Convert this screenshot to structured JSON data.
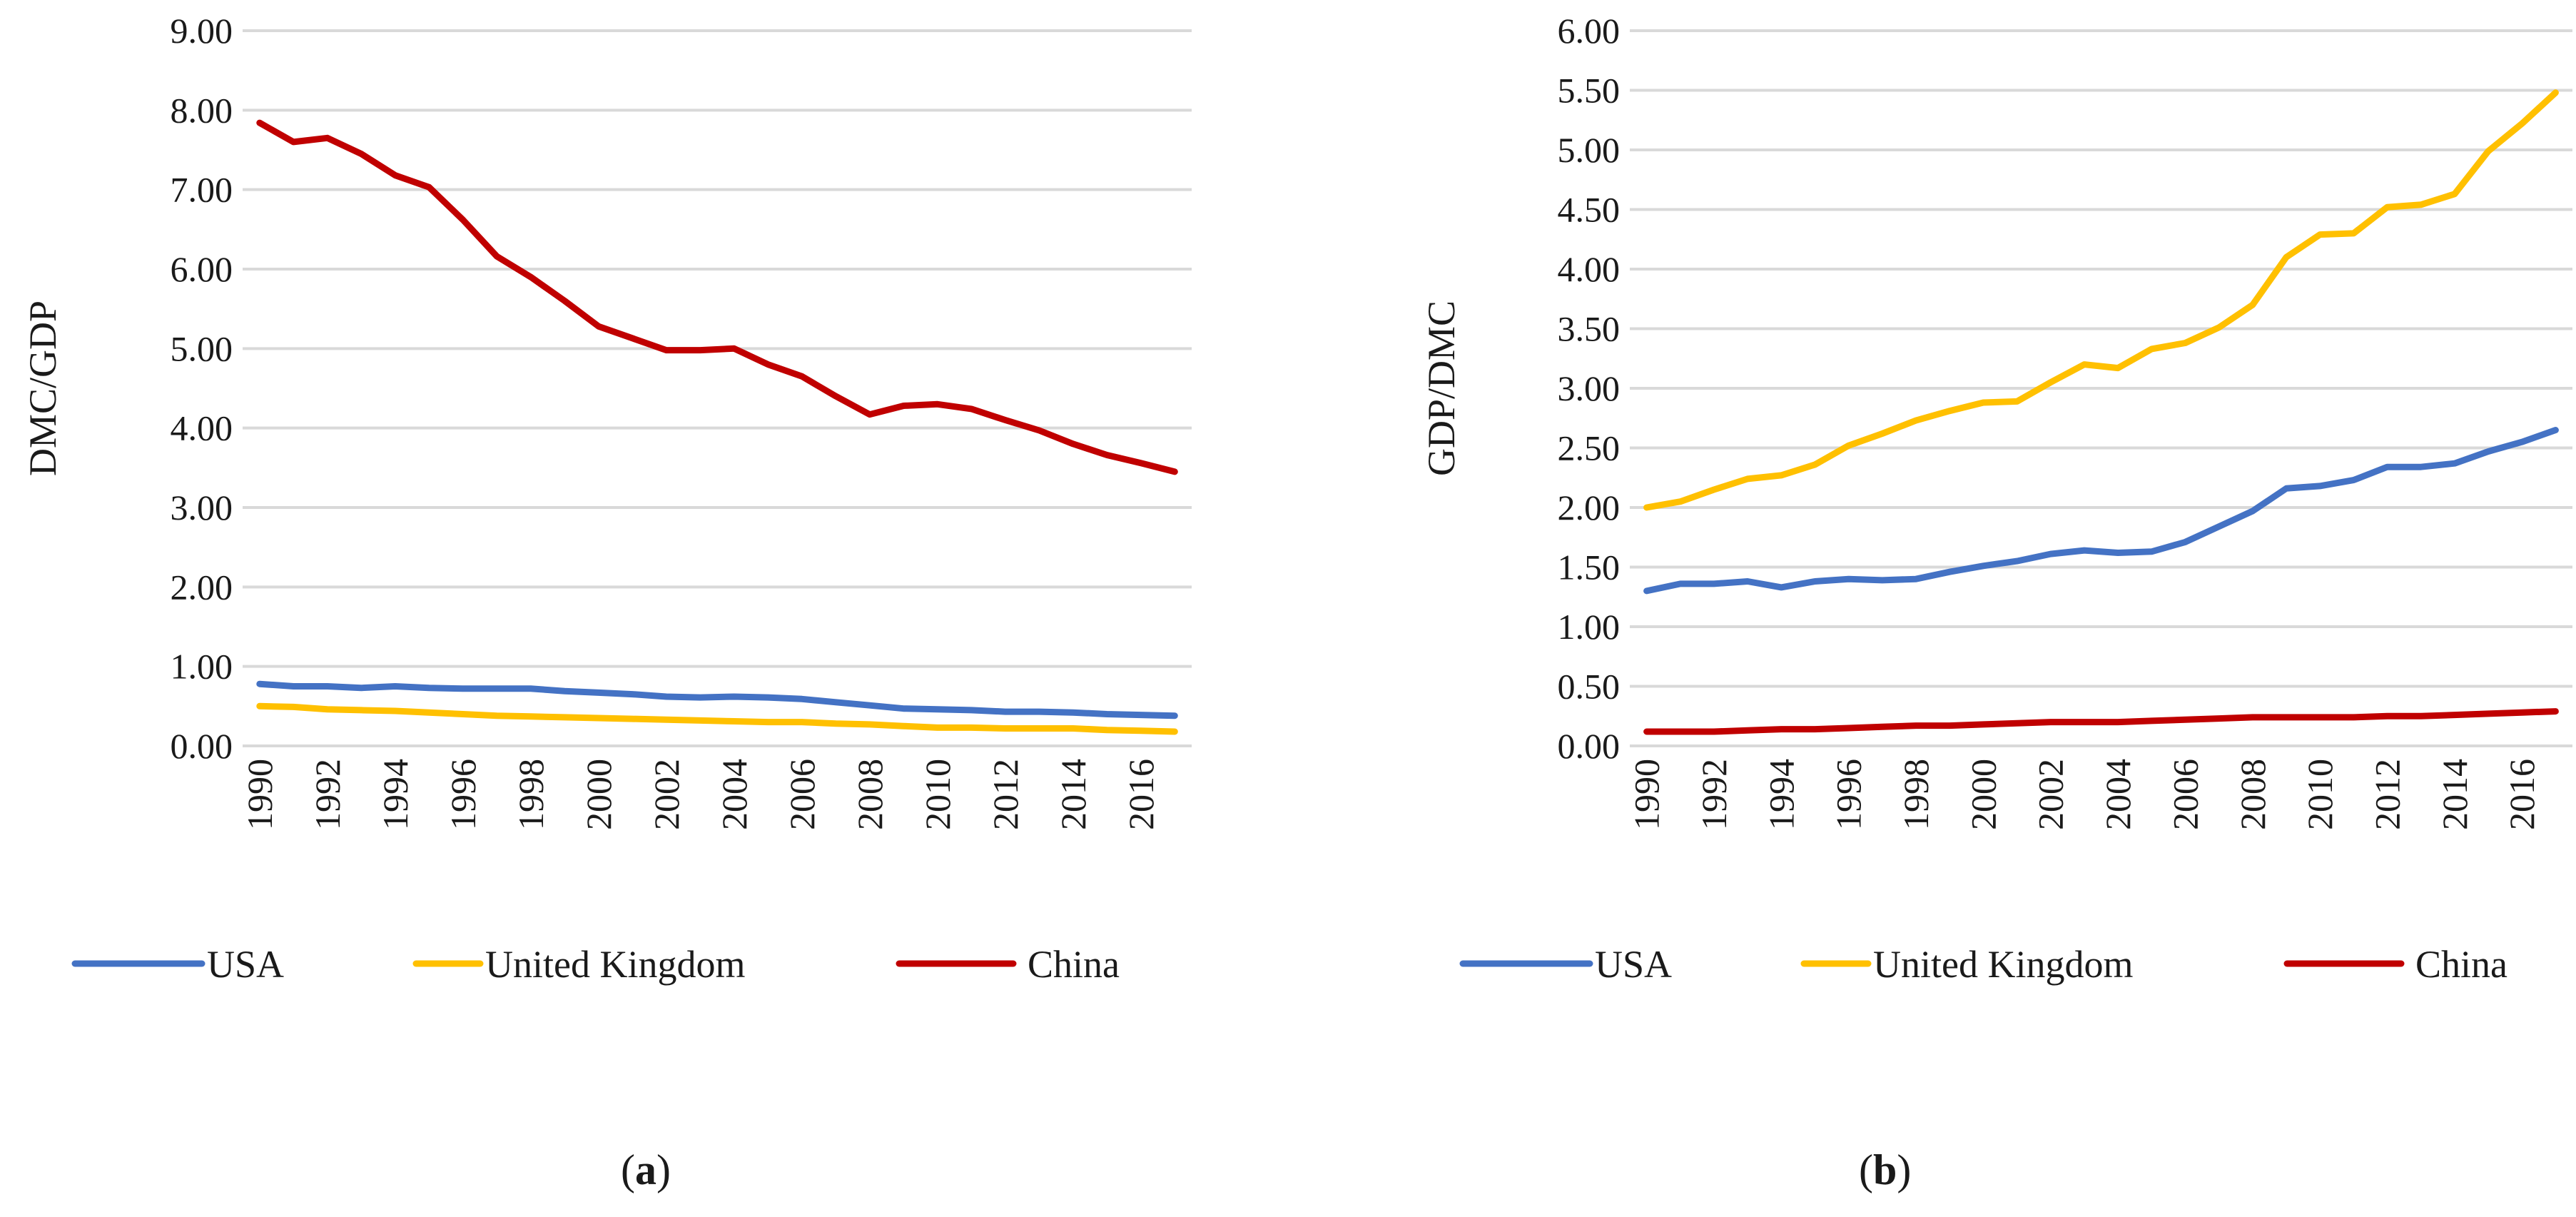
{
  "colors": {
    "usa": "#4472c4",
    "uk": "#ffc000",
    "china": "#c00000",
    "grid": "#d9d9d9"
  },
  "chart_data": [
    {
      "id": "a",
      "type": "line",
      "panel_label": "a",
      "title": "",
      "xlabel": "",
      "ylabel": "DMC/GDP",
      "ylim": [
        0,
        9
      ],
      "yticks": [
        "0.00",
        "1.00",
        "2.00",
        "3.00",
        "4.00",
        "5.00",
        "6.00",
        "7.00",
        "8.00",
        "9.00"
      ],
      "x": [
        1990,
        1991,
        1992,
        1993,
        1994,
        1995,
        1996,
        1997,
        1998,
        1999,
        2000,
        2001,
        2002,
        2003,
        2004,
        2005,
        2006,
        2007,
        2008,
        2009,
        2010,
        2011,
        2012,
        2013,
        2014,
        2015,
        2016,
        2017
      ],
      "xtick_labels": [
        "1990",
        "1992",
        "1994",
        "1996",
        "1998",
        "2000",
        "2002",
        "2004",
        "2006",
        "2008",
        "2010",
        "2012",
        "2014",
        "2016"
      ],
      "grid": true,
      "legend": "bottom",
      "series": [
        {
          "name": "USA",
          "color_key": "usa",
          "values": [
            0.78,
            0.75,
            0.75,
            0.73,
            0.75,
            0.73,
            0.72,
            0.72,
            0.72,
            0.69,
            0.67,
            0.65,
            0.62,
            0.61,
            0.62,
            0.61,
            0.59,
            0.55,
            0.51,
            0.47,
            0.46,
            0.45,
            0.43,
            0.43,
            0.42,
            0.4,
            0.39,
            0.38
          ]
        },
        {
          "name": "United Kingdom",
          "color_key": "uk",
          "values": [
            0.5,
            0.49,
            0.46,
            0.45,
            0.44,
            0.42,
            0.4,
            0.38,
            0.37,
            0.36,
            0.35,
            0.34,
            0.33,
            0.32,
            0.31,
            0.3,
            0.3,
            0.28,
            0.27,
            0.25,
            0.23,
            0.23,
            0.22,
            0.22,
            0.22,
            0.2,
            0.19,
            0.18
          ]
        },
        {
          "name": "China",
          "color_key": "china",
          "values": [
            7.84,
            7.6,
            7.65,
            7.45,
            7.18,
            7.03,
            6.62,
            6.16,
            5.9,
            5.6,
            5.28,
            5.13,
            4.98,
            4.98,
            5.0,
            4.8,
            4.65,
            4.4,
            4.17,
            4.28,
            4.3,
            4.24,
            4.1,
            3.97,
            3.8,
            3.66,
            3.56,
            3.45
          ]
        }
      ]
    },
    {
      "id": "b",
      "type": "line",
      "panel_label": "b",
      "title": "",
      "xlabel": "",
      "ylabel": "GDP/DMC",
      "ylim": [
        0,
        6
      ],
      "yticks": [
        "0.00",
        "0.50",
        "1.00",
        "1.50",
        "2.00",
        "2.50",
        "3.00",
        "3.50",
        "4.00",
        "4.50",
        "5.00",
        "5.50",
        "6.00"
      ],
      "x": [
        1990,
        1991,
        1992,
        1993,
        1994,
        1995,
        1996,
        1997,
        1998,
        1999,
        2000,
        2001,
        2002,
        2003,
        2004,
        2005,
        2006,
        2007,
        2008,
        2009,
        2010,
        2011,
        2012,
        2013,
        2014,
        2015,
        2016,
        2017
      ],
      "xtick_labels": [
        "1990",
        "1992",
        "1994",
        "1996",
        "1998",
        "2000",
        "2002",
        "2004",
        "2006",
        "2008",
        "2010",
        "2012",
        "2014",
        "2016"
      ],
      "grid": true,
      "legend": "bottom",
      "series": [
        {
          "name": "USA",
          "color_key": "usa",
          "values": [
            1.3,
            1.36,
            1.36,
            1.38,
            1.33,
            1.38,
            1.4,
            1.39,
            1.4,
            1.46,
            1.51,
            1.55,
            1.61,
            1.64,
            1.62,
            1.63,
            1.71,
            1.84,
            1.97,
            2.16,
            2.18,
            2.23,
            2.34,
            2.34,
            2.37,
            2.47,
            2.55,
            2.65
          ]
        },
        {
          "name": "United Kingdom",
          "color_key": "uk",
          "values": [
            2.0,
            2.05,
            2.15,
            2.24,
            2.27,
            2.36,
            2.52,
            2.62,
            2.73,
            2.81,
            2.88,
            2.89,
            3.05,
            3.2,
            3.17,
            3.33,
            3.38,
            3.51,
            3.7,
            4.1,
            4.29,
            4.3,
            4.52,
            4.54,
            4.63,
            4.99,
            5.22,
            5.48
          ]
        },
        {
          "name": "China",
          "color_key": "china",
          "values": [
            0.12,
            0.12,
            0.12,
            0.13,
            0.14,
            0.14,
            0.15,
            0.16,
            0.17,
            0.17,
            0.18,
            0.19,
            0.2,
            0.2,
            0.2,
            0.21,
            0.22,
            0.23,
            0.24,
            0.24,
            0.24,
            0.24,
            0.25,
            0.25,
            0.26,
            0.27,
            0.28,
            0.29
          ]
        }
      ]
    }
  ]
}
